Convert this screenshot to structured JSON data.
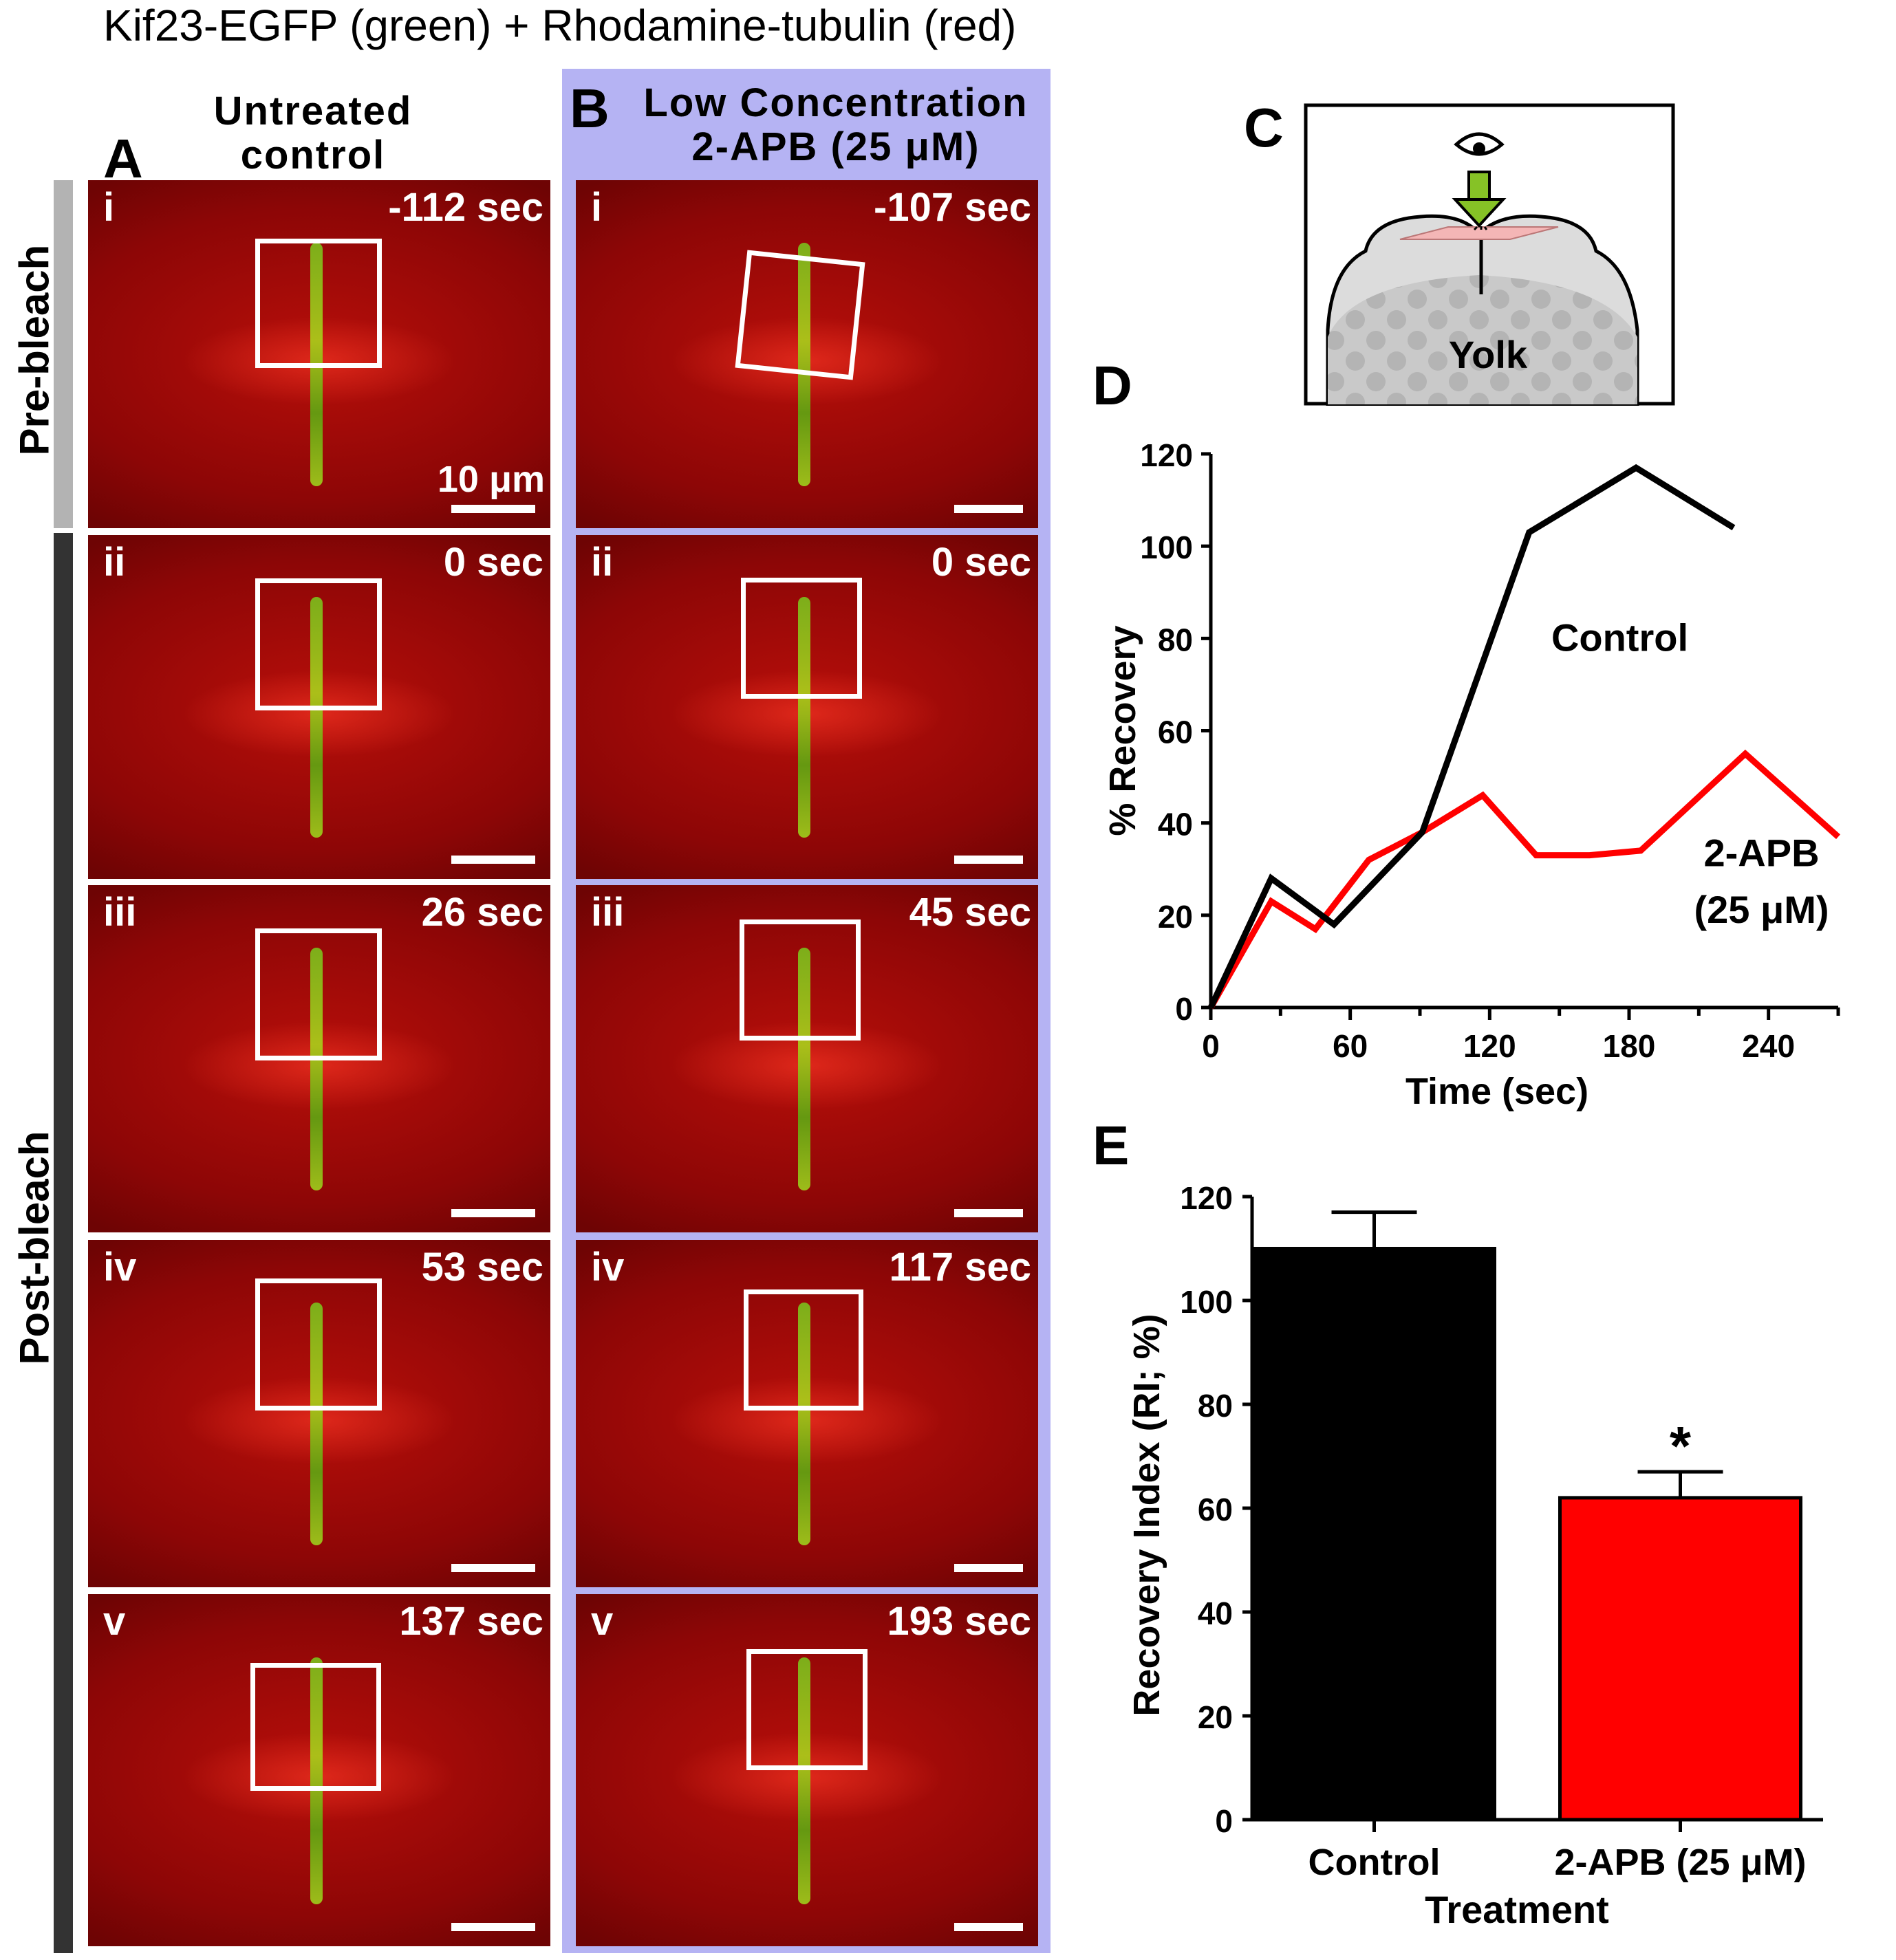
{
  "figure_title": "Kif23-EGFP (green) + Rhodamine-tubulin (red)",
  "panels": {
    "A": {
      "label": "A",
      "title_line1": "Untreated",
      "title_line2": "control"
    },
    "B": {
      "label": "B",
      "title_line1": "Low Concentration",
      "title_line2": "2-APB (25 μM)"
    },
    "C": {
      "label": "C",
      "yolk_label": "Yolk"
    },
    "D": {
      "label": "D"
    },
    "E": {
      "label": "E"
    }
  },
  "row_labels": {
    "pre": "Pre-bleach",
    "post": "Post-bleach"
  },
  "scale_bar_label": "10 μm",
  "frames_A": [
    {
      "num": "i",
      "time": "-112 sec"
    },
    {
      "num": "ii",
      "time": "0 sec"
    },
    {
      "num": "iii",
      "time": "26 sec"
    },
    {
      "num": "iv",
      "time": "53 sec"
    },
    {
      "num": "v",
      "time": "137 sec"
    }
  ],
  "frames_B": [
    {
      "num": "i",
      "time": "-107 sec"
    },
    {
      "num": "ii",
      "time": "0 sec"
    },
    {
      "num": "iii",
      "time": "45 sec"
    },
    {
      "num": "iv",
      "time": "117 sec"
    },
    {
      "num": "v",
      "time": "193 sec"
    }
  ],
  "colors": {
    "control": "#000000",
    "treatment": "#ff0000",
    "panel_b_bg": "#b5b3f3",
    "spindle_red": "#9a0808",
    "kif23_green": "#8cc81a"
  },
  "chart_data": [
    {
      "type": "line",
      "xlabel": "Time (sec)",
      "ylabel": "% Recovery",
      "xlim": [
        0,
        270
      ],
      "ylim": [
        0,
        120
      ],
      "xticks": [
        0,
        60,
        120,
        180,
        240
      ],
      "yticks": [
        0,
        20,
        40,
        60,
        80,
        100,
        120
      ],
      "series": [
        {
          "name": "Control",
          "color": "#000000",
          "x": [
            0,
            26,
            53,
            91,
            137,
            183,
            225
          ],
          "y": [
            0,
            28,
            18,
            38,
            103,
            117,
            104
          ]
        },
        {
          "name": "2-APB (25 μM)",
          "color": "#ff0000",
          "x": [
            0,
            26,
            45,
            68,
            91,
            117,
            140,
            163,
            185,
            230,
            270
          ],
          "y": [
            0,
            23,
            17,
            32,
            38,
            46,
            33,
            33,
            34,
            55,
            37
          ]
        }
      ],
      "annotations": [
        "Control",
        "2-APB",
        "(25 μM)"
      ]
    },
    {
      "type": "bar",
      "xlabel": "Treatment",
      "ylabel": "Recovery Index (RI; %)",
      "ylim": [
        0,
        120
      ],
      "yticks": [
        0,
        20,
        40,
        60,
        80,
        100,
        120
      ],
      "categories": [
        "Control",
        "2-APB (25 μM)"
      ],
      "values": [
        110,
        62
      ],
      "errors": [
        7,
        5
      ],
      "colors": [
        "#000000",
        "#ff0000"
      ],
      "significance": [
        "",
        "*"
      ]
    }
  ]
}
